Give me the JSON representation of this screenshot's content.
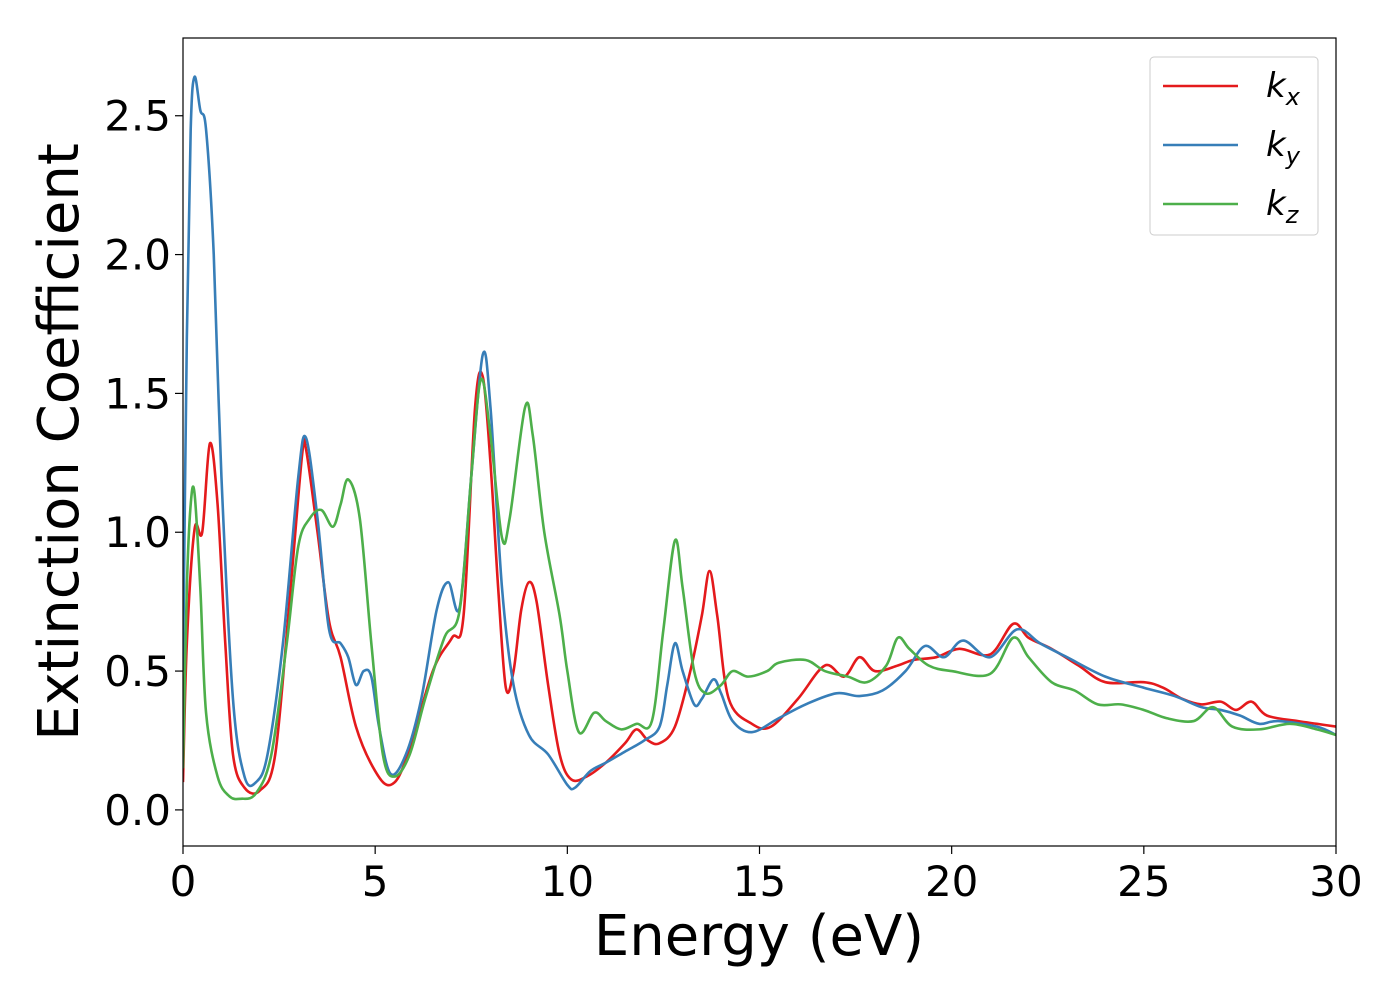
{
  "chart_data": {
    "type": "line",
    "title": "",
    "xlabel": "Energy (eV)",
    "ylabel": "Extinction Coefficient",
    "xlim": [
      0,
      30
    ],
    "ylim": [
      -0.13,
      2.78
    ],
    "xticks": [
      0,
      5,
      10,
      15,
      20,
      25,
      30
    ],
    "xtick_labels": [
      "0",
      "5",
      "10",
      "15",
      "20",
      "25",
      "30"
    ],
    "yticks": [
      0.0,
      0.5,
      1.0,
      1.5,
      2.0,
      2.5
    ],
    "ytick_labels": [
      "0.0",
      "0.5",
      "1.0",
      "1.5",
      "2.0",
      "2.5"
    ],
    "grid": false,
    "legend_position": "top-right",
    "series": [
      {
        "name": "k_x",
        "legend_base": "k",
        "legend_sub": "x",
        "color": "#e41a1c",
        "points": [
          [
            0,
            0.1
          ],
          [
            0.1,
            0.6
          ],
          [
            0.3,
            1.01
          ],
          [
            0.5,
            1.0
          ],
          [
            0.7,
            1.32
          ],
          [
            0.9,
            1.1
          ],
          [
            1.1,
            0.6
          ],
          [
            1.3,
            0.2
          ],
          [
            1.6,
            0.08
          ],
          [
            2.0,
            0.07
          ],
          [
            2.4,
            0.2
          ],
          [
            2.8,
            0.8
          ],
          [
            3.1,
            1.28
          ],
          [
            3.2,
            1.3
          ],
          [
            3.5,
            1.0
          ],
          [
            3.8,
            0.68
          ],
          [
            4.1,
            0.55
          ],
          [
            4.5,
            0.3
          ],
          [
            5.0,
            0.14
          ],
          [
            5.4,
            0.09
          ],
          [
            5.8,
            0.18
          ],
          [
            6.5,
            0.5
          ],
          [
            7.0,
            0.62
          ],
          [
            7.3,
            0.7
          ],
          [
            7.6,
            1.45
          ],
          [
            7.8,
            1.56
          ],
          [
            8.0,
            1.25
          ],
          [
            8.2,
            0.8
          ],
          [
            8.4,
            0.44
          ],
          [
            8.6,
            0.5
          ],
          [
            8.8,
            0.72
          ],
          [
            9.0,
            0.82
          ],
          [
            9.2,
            0.75
          ],
          [
            9.5,
            0.45
          ],
          [
            9.8,
            0.2
          ],
          [
            10.1,
            0.11
          ],
          [
            10.5,
            0.12
          ],
          [
            11.0,
            0.17
          ],
          [
            11.5,
            0.24
          ],
          [
            11.8,
            0.29
          ],
          [
            12.1,
            0.25
          ],
          [
            12.4,
            0.24
          ],
          [
            12.8,
            0.3
          ],
          [
            13.2,
            0.5
          ],
          [
            13.5,
            0.7
          ],
          [
            13.7,
            0.86
          ],
          [
            13.9,
            0.7
          ],
          [
            14.2,
            0.4
          ],
          [
            14.8,
            0.31
          ],
          [
            15.3,
            0.3
          ],
          [
            16.0,
            0.4
          ],
          [
            16.7,
            0.52
          ],
          [
            17.2,
            0.48
          ],
          [
            17.6,
            0.55
          ],
          [
            18.0,
            0.5
          ],
          [
            18.6,
            0.52
          ],
          [
            19.0,
            0.54
          ],
          [
            19.6,
            0.55
          ],
          [
            20.2,
            0.58
          ],
          [
            21.0,
            0.56
          ],
          [
            21.6,
            0.67
          ],
          [
            22.0,
            0.62
          ],
          [
            22.6,
            0.58
          ],
          [
            23.3,
            0.52
          ],
          [
            24.0,
            0.46
          ],
          [
            25.0,
            0.46
          ],
          [
            25.5,
            0.44
          ],
          [
            26.0,
            0.4
          ],
          [
            26.5,
            0.38
          ],
          [
            27.0,
            0.39
          ],
          [
            27.4,
            0.36
          ],
          [
            27.8,
            0.39
          ],
          [
            28.2,
            0.34
          ],
          [
            29.0,
            0.32
          ],
          [
            29.5,
            0.31
          ],
          [
            30.0,
            0.3
          ]
        ]
      },
      {
        "name": "k_y",
        "legend_base": "k",
        "legend_sub": "y",
        "color": "#377eb8",
        "points": [
          [
            0,
            0.5
          ],
          [
            0.1,
            1.7
          ],
          [
            0.2,
            2.45
          ],
          [
            0.3,
            2.64
          ],
          [
            0.45,
            2.52
          ],
          [
            0.6,
            2.45
          ],
          [
            0.8,
            2.0
          ],
          [
            1.0,
            1.2
          ],
          [
            1.3,
            0.4
          ],
          [
            1.6,
            0.12
          ],
          [
            1.9,
            0.1
          ],
          [
            2.2,
            0.2
          ],
          [
            2.6,
            0.6
          ],
          [
            3.0,
            1.2
          ],
          [
            3.2,
            1.34
          ],
          [
            3.5,
            1.05
          ],
          [
            3.8,
            0.65
          ],
          [
            4.1,
            0.6
          ],
          [
            4.3,
            0.55
          ],
          [
            4.5,
            0.45
          ],
          [
            4.7,
            0.5
          ],
          [
            4.9,
            0.48
          ],
          [
            5.1,
            0.3
          ],
          [
            5.4,
            0.13
          ],
          [
            5.8,
            0.2
          ],
          [
            6.2,
            0.4
          ],
          [
            6.6,
            0.72
          ],
          [
            6.9,
            0.82
          ],
          [
            7.2,
            0.73
          ],
          [
            7.5,
            1.2
          ],
          [
            7.8,
            1.64
          ],
          [
            8.0,
            1.45
          ],
          [
            8.3,
            0.8
          ],
          [
            8.6,
            0.45
          ],
          [
            9.0,
            0.27
          ],
          [
            9.5,
            0.2
          ],
          [
            10.0,
            0.09
          ],
          [
            10.2,
            0.08
          ],
          [
            10.6,
            0.14
          ],
          [
            11.0,
            0.17
          ],
          [
            11.5,
            0.21
          ],
          [
            12.0,
            0.25
          ],
          [
            12.4,
            0.3
          ],
          [
            12.6,
            0.45
          ],
          [
            12.8,
            0.6
          ],
          [
            13.0,
            0.5
          ],
          [
            13.3,
            0.38
          ],
          [
            13.5,
            0.4
          ],
          [
            13.8,
            0.47
          ],
          [
            14.0,
            0.42
          ],
          [
            14.3,
            0.32
          ],
          [
            14.8,
            0.28
          ],
          [
            15.5,
            0.33
          ],
          [
            16.2,
            0.38
          ],
          [
            17.0,
            0.42
          ],
          [
            17.6,
            0.41
          ],
          [
            18.2,
            0.43
          ],
          [
            18.8,
            0.5
          ],
          [
            19.3,
            0.59
          ],
          [
            19.8,
            0.55
          ],
          [
            20.3,
            0.61
          ],
          [
            21.0,
            0.55
          ],
          [
            21.7,
            0.65
          ],
          [
            22.3,
            0.6
          ],
          [
            23.0,
            0.55
          ],
          [
            24.0,
            0.48
          ],
          [
            25.0,
            0.44
          ],
          [
            25.8,
            0.41
          ],
          [
            26.5,
            0.37
          ],
          [
            27.0,
            0.36
          ],
          [
            27.5,
            0.34
          ],
          [
            28.0,
            0.31
          ],
          [
            28.5,
            0.32
          ],
          [
            29.5,
            0.3
          ],
          [
            30.0,
            0.27
          ]
        ]
      },
      {
        "name": "k_z",
        "legend_base": "k",
        "legend_sub": "z",
        "color": "#4daf4a",
        "points": [
          [
            0,
            0.15
          ],
          [
            0.1,
            0.8
          ],
          [
            0.2,
            1.1
          ],
          [
            0.3,
            1.14
          ],
          [
            0.45,
            0.8
          ],
          [
            0.6,
            0.35
          ],
          [
            0.9,
            0.12
          ],
          [
            1.2,
            0.05
          ],
          [
            1.5,
            0.04
          ],
          [
            1.9,
            0.06
          ],
          [
            2.3,
            0.2
          ],
          [
            2.7,
            0.6
          ],
          [
            3.0,
            0.95
          ],
          [
            3.3,
            1.05
          ],
          [
            3.6,
            1.08
          ],
          [
            3.9,
            1.02
          ],
          [
            4.1,
            1.1
          ],
          [
            4.3,
            1.19
          ],
          [
            4.6,
            1.05
          ],
          [
            4.9,
            0.6
          ],
          [
            5.2,
            0.2
          ],
          [
            5.5,
            0.12
          ],
          [
            5.9,
            0.2
          ],
          [
            6.3,
            0.4
          ],
          [
            6.8,
            0.62
          ],
          [
            7.2,
            0.72
          ],
          [
            7.5,
            1.2
          ],
          [
            7.75,
            1.55
          ],
          [
            8.0,
            1.35
          ],
          [
            8.3,
            0.98
          ],
          [
            8.5,
            1.05
          ],
          [
            8.9,
            1.45
          ],
          [
            9.1,
            1.35
          ],
          [
            9.4,
            1.0
          ],
          [
            9.8,
            0.7
          ],
          [
            10.0,
            0.5
          ],
          [
            10.3,
            0.28
          ],
          [
            10.7,
            0.35
          ],
          [
            11.0,
            0.32
          ],
          [
            11.4,
            0.29
          ],
          [
            11.8,
            0.31
          ],
          [
            12.2,
            0.32
          ],
          [
            12.5,
            0.65
          ],
          [
            12.8,
            0.97
          ],
          [
            13.0,
            0.8
          ],
          [
            13.3,
            0.5
          ],
          [
            13.6,
            0.42
          ],
          [
            14.0,
            0.45
          ],
          [
            14.3,
            0.5
          ],
          [
            14.7,
            0.48
          ],
          [
            15.2,
            0.5
          ],
          [
            15.5,
            0.53
          ],
          [
            16.2,
            0.54
          ],
          [
            16.7,
            0.5
          ],
          [
            17.3,
            0.48
          ],
          [
            17.8,
            0.46
          ],
          [
            18.3,
            0.52
          ],
          [
            18.6,
            0.62
          ],
          [
            18.9,
            0.58
          ],
          [
            19.4,
            0.52
          ],
          [
            20.0,
            0.5
          ],
          [
            21.0,
            0.49
          ],
          [
            21.6,
            0.62
          ],
          [
            22.0,
            0.55
          ],
          [
            22.6,
            0.46
          ],
          [
            23.2,
            0.43
          ],
          [
            23.8,
            0.38
          ],
          [
            24.4,
            0.38
          ],
          [
            25.0,
            0.36
          ],
          [
            25.6,
            0.33
          ],
          [
            26.3,
            0.32
          ],
          [
            26.8,
            0.37
          ],
          [
            27.3,
            0.3
          ],
          [
            28.0,
            0.29
          ],
          [
            28.8,
            0.31
          ],
          [
            29.5,
            0.29
          ],
          [
            30.0,
            0.27
          ]
        ]
      }
    ]
  }
}
